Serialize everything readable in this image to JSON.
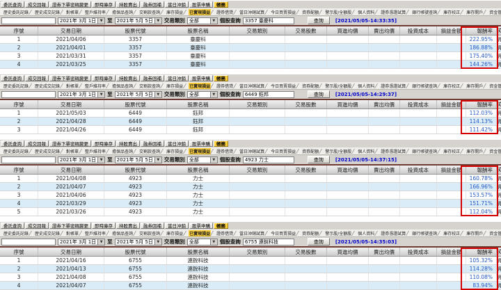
{
  "shared": {
    "toolbar_tabs": [
      {
        "label": "委託查詢"
      },
      {
        "label": "成交回報"
      },
      {
        "label": "證券下單密碼變更"
      },
      {
        "label": "即時庫存"
      },
      {
        "label": "持股賣出"
      },
      {
        "label": "融券回補"
      },
      {
        "label": "當日沖銷"
      },
      {
        "label": "股票申購"
      },
      {
        "label": "帳務",
        "active": true
      }
    ],
    "sub_tabs": [
      {
        "label": "歷史委託記錄"
      },
      {
        "label": "歷史成交記錄"
      },
      {
        "label": "對帳單"
      },
      {
        "label": "整戶維持率"
      },
      {
        "label": "擔保品查詢"
      },
      {
        "label": "交割款查詢"
      },
      {
        "label": "庫存損益"
      },
      {
        "label": "已實現損益",
        "active": true
      },
      {
        "label": "證券借貸"
      },
      {
        "label": "當日沖銷試算"
      },
      {
        "label": "今日買賣損益"
      },
      {
        "label": "資券配額"
      },
      {
        "label": "警示股/全額股"
      },
      {
        "label": "個人資料"
      },
      {
        "label": "證券憑證試算"
      },
      {
        "label": "銀行帳號查詢"
      },
      {
        "label": "庫存校正"
      },
      {
        "label": "庫存開戶"
      },
      {
        "label": "資金管理帳戶"
      }
    ],
    "filter": {
      "date_from": "2021年 3月 1日",
      "to_label": "至",
      "date_to": "2021年 5月 5日",
      "type_label": "交易類別",
      "type_value": "全部",
      "stock_label": "個股查詢",
      "query_button": "查詢"
    },
    "columns": [
      "序號",
      "交易日期",
      "股票代號",
      "股票名稱",
      "交易類別",
      "交易股數",
      "買進均價",
      "賣出均價",
      "投資成本",
      "損益金額",
      "報酬率"
    ],
    "edge_fragment_header": "試",
    "edge_fragment_cell": "明",
    "colors": {
      "accent_yellow": "#ffd13b",
      "stripe_blue": "#d9ecf7",
      "rate_blue": "#2257c4",
      "timestamp_blue": "#0000cc",
      "red_box": "#d40000"
    }
  },
  "panels": [
    {
      "stock_query": "3357 臺慶科",
      "timestamp": "[2021/05/05-14:33:35]",
      "rows": [
        [
          "1",
          "2021/04/06",
          "3357",
          "臺慶科",
          "",
          "",
          "",
          "",
          "",
          "",
          "222.95%"
        ],
        [
          "2",
          "2021/04/01",
          "3357",
          "臺慶科",
          "",
          "",
          "",
          "",
          "",
          "",
          "186.88%"
        ],
        [
          "3",
          "2021/03/31",
          "3357",
          "臺慶科",
          "",
          "",
          "",
          "",
          "",
          "",
          "175.40%"
        ],
        [
          "4",
          "2021/03/25",
          "3357",
          "臺慶科",
          "",
          "",
          "",
          "",
          "",
          "",
          "144.26%"
        ]
      ]
    },
    {
      "stock_query": "6449 鈺邦",
      "timestamp": "[2021/05/05-14:29:37]",
      "rows": [
        [
          "1",
          "2021/05/03",
          "6449",
          "鈺邦",
          "",
          "",
          "",
          "",
          "",
          "",
          "112.03%"
        ],
        [
          "2",
          "2021/04/28",
          "6449",
          "鈺邦",
          "",
          "",
          "",
          "",
          "",
          "",
          "114.13%"
        ],
        [
          "3",
          "2021/04/26",
          "6449",
          "鈺邦",
          "",
          "",
          "",
          "",
          "",
          "",
          "111.42%"
        ]
      ]
    },
    {
      "stock_query": "4923 力士",
      "timestamp": "[2021/05/05-14:37:15]",
      "rows": [
        [
          "1",
          "2021/04/08",
          "4923",
          "力士",
          "",
          "",
          "",
          "",
          "",
          "",
          "160.78%"
        ],
        [
          "2",
          "2021/04/07",
          "4923",
          "力士",
          "",
          "",
          "",
          "",
          "",
          "",
          "166.96%"
        ],
        [
          "3",
          "2021/04/06",
          "4923",
          "力士",
          "",
          "",
          "",
          "",
          "",
          "",
          "153.57%"
        ],
        [
          "4",
          "2021/03/29",
          "4923",
          "力士",
          "",
          "",
          "",
          "",
          "",
          "",
          "151.71%"
        ],
        [
          "5",
          "2021/03/26",
          "4923",
          "力士",
          "",
          "",
          "",
          "",
          "",
          "",
          "112.04%"
        ]
      ]
    },
    {
      "stock_query": "6755 連銳科技",
      "timestamp": "[2021/05/05-14:35:03]",
      "rows": [
        [
          "1",
          "2021/04/16",
          "6755",
          "連銳科技",
          "",
          "",
          "",
          "",
          "",
          "",
          "105.32%"
        ],
        [
          "2",
          "2021/04/13",
          "6755",
          "連銳科技",
          "",
          "",
          "",
          "",
          "",
          "",
          "114.28%"
        ],
        [
          "3",
          "2021/04/08",
          "6755",
          "連銳科技",
          "",
          "",
          "",
          "",
          "",
          "",
          "110.08%"
        ],
        [
          "4",
          "2021/04/07",
          "6755",
          "連銳科技",
          "",
          "",
          "",
          "",
          "",
          "",
          "83.94%"
        ]
      ]
    }
  ]
}
